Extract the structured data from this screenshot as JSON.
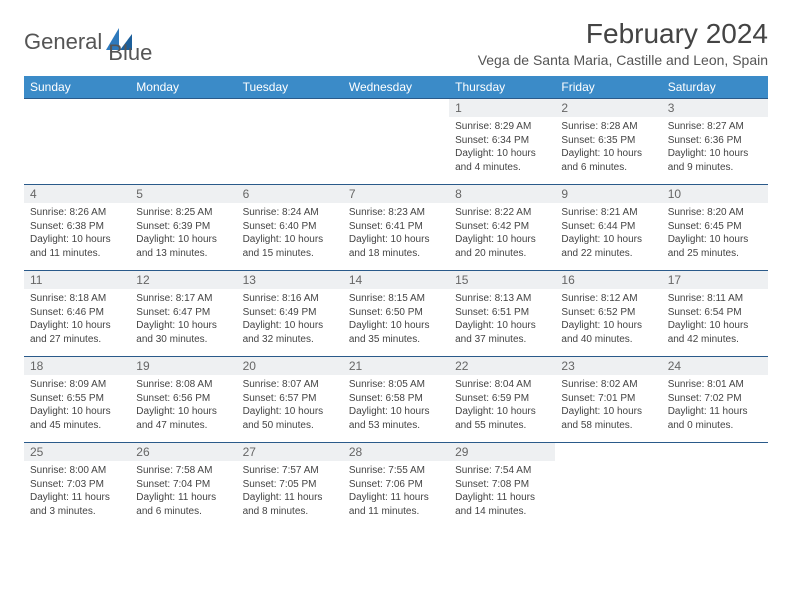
{
  "brand": {
    "name_a": "General",
    "name_b": "Blue",
    "accent": "#2e79bc"
  },
  "title": "February 2024",
  "location": "Vega de Santa Maria, Castille and Leon, Spain",
  "day_headers": [
    "Sunday",
    "Monday",
    "Tuesday",
    "Wednesday",
    "Thursday",
    "Friday",
    "Saturday"
  ],
  "colors": {
    "header_bg": "#3b8bc8",
    "header_text": "#ffffff",
    "daynum_bg": "#eef0f2",
    "border": "#2a5a8a",
    "text": "#444444"
  },
  "weeks": [
    [
      null,
      null,
      null,
      null,
      {
        "n": "1",
        "sunrise": "8:29 AM",
        "sunset": "6:34 PM",
        "daylight": "10 hours and 4 minutes."
      },
      {
        "n": "2",
        "sunrise": "8:28 AM",
        "sunset": "6:35 PM",
        "daylight": "10 hours and 6 minutes."
      },
      {
        "n": "3",
        "sunrise": "8:27 AM",
        "sunset": "6:36 PM",
        "daylight": "10 hours and 9 minutes."
      }
    ],
    [
      {
        "n": "4",
        "sunrise": "8:26 AM",
        "sunset": "6:38 PM",
        "daylight": "10 hours and 11 minutes."
      },
      {
        "n": "5",
        "sunrise": "8:25 AM",
        "sunset": "6:39 PM",
        "daylight": "10 hours and 13 minutes."
      },
      {
        "n": "6",
        "sunrise": "8:24 AM",
        "sunset": "6:40 PM",
        "daylight": "10 hours and 15 minutes."
      },
      {
        "n": "7",
        "sunrise": "8:23 AM",
        "sunset": "6:41 PM",
        "daylight": "10 hours and 18 minutes."
      },
      {
        "n": "8",
        "sunrise": "8:22 AM",
        "sunset": "6:42 PM",
        "daylight": "10 hours and 20 minutes."
      },
      {
        "n": "9",
        "sunrise": "8:21 AM",
        "sunset": "6:44 PM",
        "daylight": "10 hours and 22 minutes."
      },
      {
        "n": "10",
        "sunrise": "8:20 AM",
        "sunset": "6:45 PM",
        "daylight": "10 hours and 25 minutes."
      }
    ],
    [
      {
        "n": "11",
        "sunrise": "8:18 AM",
        "sunset": "6:46 PM",
        "daylight": "10 hours and 27 minutes."
      },
      {
        "n": "12",
        "sunrise": "8:17 AM",
        "sunset": "6:47 PM",
        "daylight": "10 hours and 30 minutes."
      },
      {
        "n": "13",
        "sunrise": "8:16 AM",
        "sunset": "6:49 PM",
        "daylight": "10 hours and 32 minutes."
      },
      {
        "n": "14",
        "sunrise": "8:15 AM",
        "sunset": "6:50 PM",
        "daylight": "10 hours and 35 minutes."
      },
      {
        "n": "15",
        "sunrise": "8:13 AM",
        "sunset": "6:51 PM",
        "daylight": "10 hours and 37 minutes."
      },
      {
        "n": "16",
        "sunrise": "8:12 AM",
        "sunset": "6:52 PM",
        "daylight": "10 hours and 40 minutes."
      },
      {
        "n": "17",
        "sunrise": "8:11 AM",
        "sunset": "6:54 PM",
        "daylight": "10 hours and 42 minutes."
      }
    ],
    [
      {
        "n": "18",
        "sunrise": "8:09 AM",
        "sunset": "6:55 PM",
        "daylight": "10 hours and 45 minutes."
      },
      {
        "n": "19",
        "sunrise": "8:08 AM",
        "sunset": "6:56 PM",
        "daylight": "10 hours and 47 minutes."
      },
      {
        "n": "20",
        "sunrise": "8:07 AM",
        "sunset": "6:57 PM",
        "daylight": "10 hours and 50 minutes."
      },
      {
        "n": "21",
        "sunrise": "8:05 AM",
        "sunset": "6:58 PM",
        "daylight": "10 hours and 53 minutes."
      },
      {
        "n": "22",
        "sunrise": "8:04 AM",
        "sunset": "6:59 PM",
        "daylight": "10 hours and 55 minutes."
      },
      {
        "n": "23",
        "sunrise": "8:02 AM",
        "sunset": "7:01 PM",
        "daylight": "10 hours and 58 minutes."
      },
      {
        "n": "24",
        "sunrise": "8:01 AM",
        "sunset": "7:02 PM",
        "daylight": "11 hours and 0 minutes."
      }
    ],
    [
      {
        "n": "25",
        "sunrise": "8:00 AM",
        "sunset": "7:03 PM",
        "daylight": "11 hours and 3 minutes."
      },
      {
        "n": "26",
        "sunrise": "7:58 AM",
        "sunset": "7:04 PM",
        "daylight": "11 hours and 6 minutes."
      },
      {
        "n": "27",
        "sunrise": "7:57 AM",
        "sunset": "7:05 PM",
        "daylight": "11 hours and 8 minutes."
      },
      {
        "n": "28",
        "sunrise": "7:55 AM",
        "sunset": "7:06 PM",
        "daylight": "11 hours and 11 minutes."
      },
      {
        "n": "29",
        "sunrise": "7:54 AM",
        "sunset": "7:08 PM",
        "daylight": "11 hours and 14 minutes."
      },
      null,
      null
    ]
  ],
  "labels": {
    "sunrise": "Sunrise: ",
    "sunset": "Sunset: ",
    "daylight": "Daylight: "
  }
}
